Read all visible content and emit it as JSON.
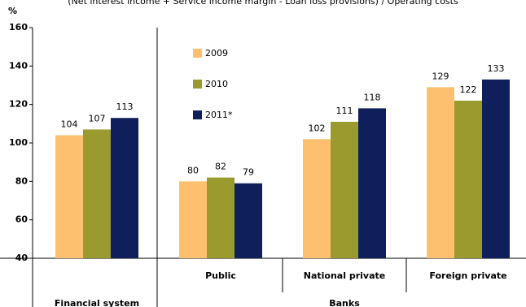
{
  "chart_data": {
    "type": "bar",
    "title": "(Net interest income + Service income margin - Loan loss provisions) / Operating costs",
    "y_label": "%",
    "categories": [
      "Financial system",
      "Public",
      "National private",
      "Foreign private"
    ],
    "group_label": "Banks",
    "series": [
      {
        "name": "2009",
        "color": "#fcc06f",
        "values": [
          104,
          80,
          102,
          129
        ]
      },
      {
        "name": "2010",
        "color": "#9a9a2e",
        "values": [
          107,
          82,
          111,
          122
        ]
      },
      {
        "name": "2011*",
        "color": "#0f1f5c",
        "values": [
          113,
          79,
          118,
          133
        ]
      }
    ],
    "ylim": [
      40,
      160
    ],
    "yticks": [
      40,
      60,
      80,
      100,
      120,
      140,
      160
    ],
    "grid": false
  }
}
